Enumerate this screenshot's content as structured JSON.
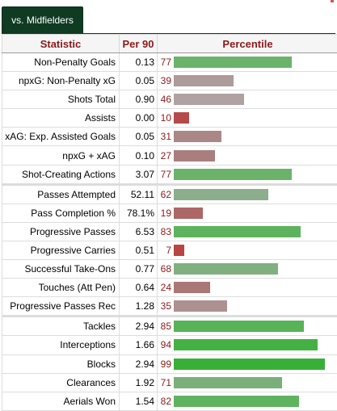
{
  "tab": {
    "label": "vs. Midfielders"
  },
  "headers": {
    "statistic": "Statistic",
    "per90": "Per 90",
    "percentile": "Percentile"
  },
  "colors": {
    "high": "#66b266",
    "very_high": "#3cb043",
    "mid_high": "#8caf8c",
    "mid_low": "#aa9a9a",
    "low": "#a87878",
    "very_low": "#b04848",
    "header_text": "#8b1a1a"
  },
  "rows": [
    {
      "stat": "Non-Penalty Goals",
      "per90": "0.13",
      "pct": "77",
      "pct_value": 77,
      "color": "#6bb36b"
    },
    {
      "stat": "npxG: Non-Penalty xG",
      "per90": "0.05",
      "pct": "39",
      "pct_value": 39,
      "color": "#ad9a9a"
    },
    {
      "stat": "Shots Total",
      "per90": "0.90",
      "pct": "46",
      "pct_value": 46,
      "color": "#b0a2a2"
    },
    {
      "stat": "Assists",
      "per90": "0.00",
      "pct": "10",
      "pct_value": 10,
      "color": "#b54a4a"
    },
    {
      "stat": "xAG: Exp. Assisted Goals",
      "per90": "0.05",
      "pct": "31",
      "pct_value": 31,
      "color": "#ab8686"
    },
    {
      "stat": "npxG + xAG",
      "per90": "0.10",
      "pct": "27",
      "pct_value": 27,
      "color": "#aa7e7e"
    },
    {
      "stat": "Shot-Creating Actions",
      "per90": "3.07",
      "pct": "77",
      "pct_value": 77,
      "color": "#6bb36b"
    },
    {
      "stat": "Passes Attempted",
      "per90": "52.11",
      "pct": "62",
      "pct_value": 62,
      "color": "#8cae8c",
      "group_start": true
    },
    {
      "stat": "Pass Completion %",
      "per90": "78.1%",
      "pct": "19",
      "pct_value": 19,
      "color": "#ad6767"
    },
    {
      "stat": "Progressive Passes",
      "per90": "6.53",
      "pct": "83",
      "pct_value": 83,
      "color": "#5db35d"
    },
    {
      "stat": "Progressive Carries",
      "per90": "0.51",
      "pct": "7",
      "pct_value": 7,
      "color": "#b94444"
    },
    {
      "stat": "Successful Take-Ons",
      "per90": "0.77",
      "pct": "68",
      "pct_value": 68,
      "color": "#80b080"
    },
    {
      "stat": "Touches (Att Pen)",
      "per90": "0.64",
      "pct": "24",
      "pct_value": 24,
      "color": "#ab7676"
    },
    {
      "stat": "Progressive Passes Rec",
      "per90": "1.28",
      "pct": "35",
      "pct_value": 35,
      "color": "#ad9090"
    },
    {
      "stat": "Tackles",
      "per90": "2.94",
      "pct": "85",
      "pct_value": 85,
      "color": "#58b258",
      "group_start": true
    },
    {
      "stat": "Interceptions",
      "per90": "1.66",
      "pct": "94",
      "pct_value": 94,
      "color": "#44b144"
    },
    {
      "stat": "Blocks",
      "per90": "2.94",
      "pct": "99",
      "pct_value": 99,
      "color": "#38b038"
    },
    {
      "stat": "Clearances",
      "per90": "1.92",
      "pct": "71",
      "pct_value": 71,
      "color": "#79b079"
    },
    {
      "stat": "Aerials Won",
      "per90": "1.54",
      "pct": "82",
      "pct_value": 82,
      "color": "#5fb35f"
    }
  ]
}
